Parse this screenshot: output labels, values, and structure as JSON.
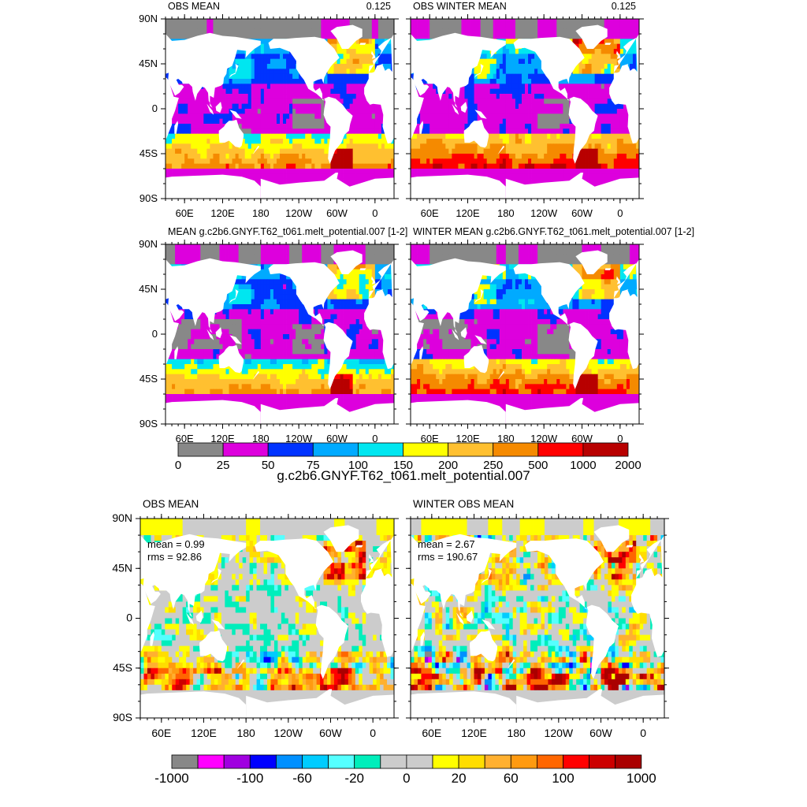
{
  "chart_data": {
    "type": "heatmap",
    "figure": "ocean melt potential diagnostic maps",
    "lat_ticks": [
      "90N",
      "45N",
      "0",
      "45S",
      "90S"
    ],
    "lon_ticks": [
      "60E",
      "120E",
      "180",
      "120W",
      "60W",
      "0"
    ],
    "panels": [
      {
        "id": "obs-mean",
        "title_left": "OBS MEAN",
        "title_right": "0.125"
      },
      {
        "id": "obs-winter-mean",
        "title_left": "OBS WINTER MEAN",
        "title_right": "0.125"
      },
      {
        "id": "model-mean",
        "title_left": "MEAN g.c2b6.GNYF.T62_t061.melt_potential.007 [1-2]"
      },
      {
        "id": "model-winter-mean",
        "title_left": "WINTER MEAN g.c2b6.GNYF.T62_t061.melt_potential.007 [1-2]"
      },
      {
        "id": "diff-obs-mean",
        "title_left": "OBS MEAN",
        "mean_label": "mean = 0.99",
        "rms_label": "rms = 92.86"
      },
      {
        "id": "diff-winter-obs-mean",
        "title_left": "WINTER OBS MEAN",
        "mean_label": "mean = 2.67",
        "rms_label": "rms = 190.67"
      }
    ],
    "colorbar_top": {
      "labels": [
        "0",
        "25",
        "50",
        "75",
        "100",
        "150",
        "200",
        "250",
        "500",
        "1000",
        "2000"
      ],
      "colors": [
        "#888888",
        "#dd00dd",
        "#0033ff",
        "#00aaff",
        "#00e6f0",
        "#ffff00",
        "#ffc030",
        "#f58a00",
        "#ff0000",
        "#b80000"
      ],
      "title": "g.c2b6.GNYF.T62_t061.melt_potential.007"
    },
    "colorbar_bottom": {
      "labels": [
        "-1000",
        "-100",
        "-60",
        "-20",
        "0",
        "20",
        "60",
        "100",
        "1000"
      ],
      "colors": [
        "#888888",
        "#ff00ff",
        "#a000e0",
        "#0000ff",
        "#0090ff",
        "#00ccff",
        "#55ffff",
        "#00eebb",
        "#cccccc",
        "#cccccc",
        "#ffff00",
        "#ffdd00",
        "#ffb030",
        "#ff9a10",
        "#ff6600",
        "#ff0000",
        "#cc0000",
        "#aa0000"
      ]
    },
    "colors": {
      "land": "#ffffff",
      "ice": "#888888",
      "diff_zero": "#cccccc"
    }
  }
}
